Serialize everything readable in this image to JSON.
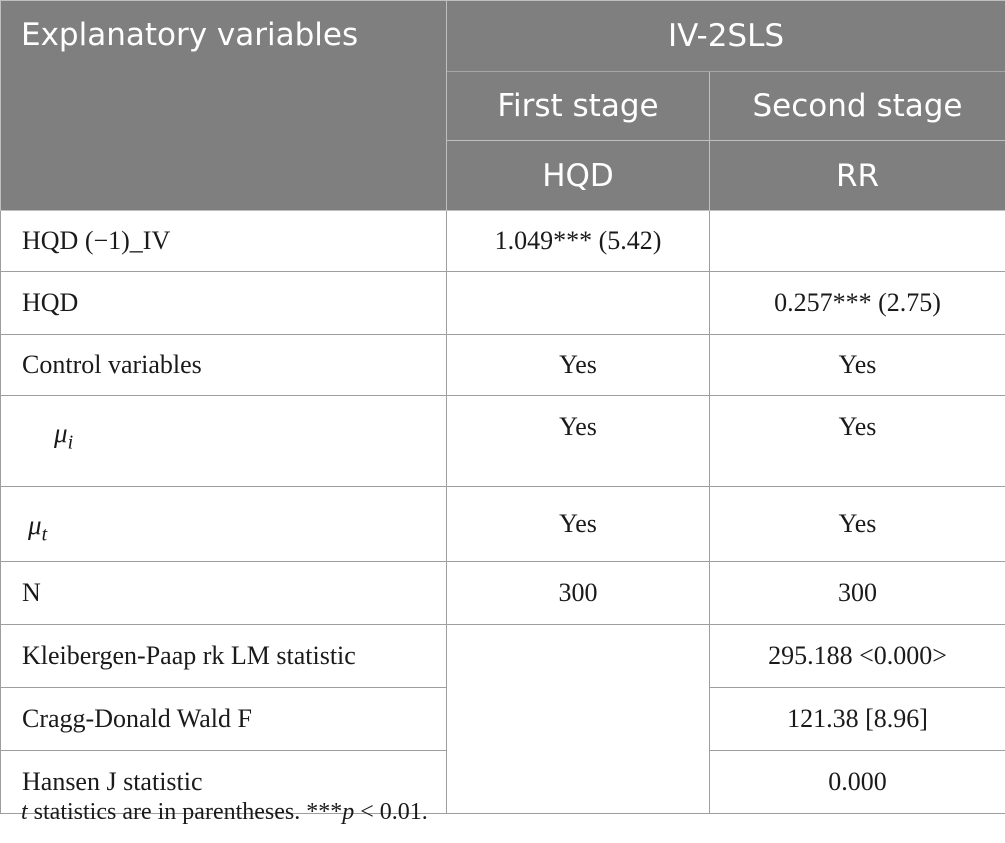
{
  "header": {
    "col1": "Explanatory variables",
    "group": "IV-2SLS",
    "stage1": "First stage",
    "stage2": "Second stage",
    "dep1": "HQD",
    "dep2": "RR"
  },
  "rows": [
    {
      "label": "HQD (−1)_IV",
      "c1": "1.049*** (5.42)",
      "c2": ""
    },
    {
      "label": "HQD",
      "c1": "",
      "c2": "0.257*** (2.75)"
    },
    {
      "label": "Control variables",
      "c1": "Yes",
      "c2": "Yes"
    },
    {
      "label_symbol": "μ",
      "label_sub": "i",
      "c1": "Yes",
      "c2": "Yes"
    },
    {
      "label_symbol": "μ",
      "label_sub": "t",
      "c1": "Yes",
      "c2": "Yes"
    },
    {
      "label": "N",
      "c1": "300",
      "c2": "300"
    },
    {
      "label": "Kleibergen-Paap rk LM statistic",
      "c1": "",
      "c2": "295.188 <0.000>"
    },
    {
      "label": "Cragg-Donald Wald F",
      "c2": "121.38 [8.96]"
    },
    {
      "label": "Hansen J statistic",
      "c2": "0.000"
    }
  ],
  "note": {
    "t": "t",
    "rest1": " statistics are in parentheses. ***",
    "p": "p",
    "rest2": " < 0.01."
  }
}
